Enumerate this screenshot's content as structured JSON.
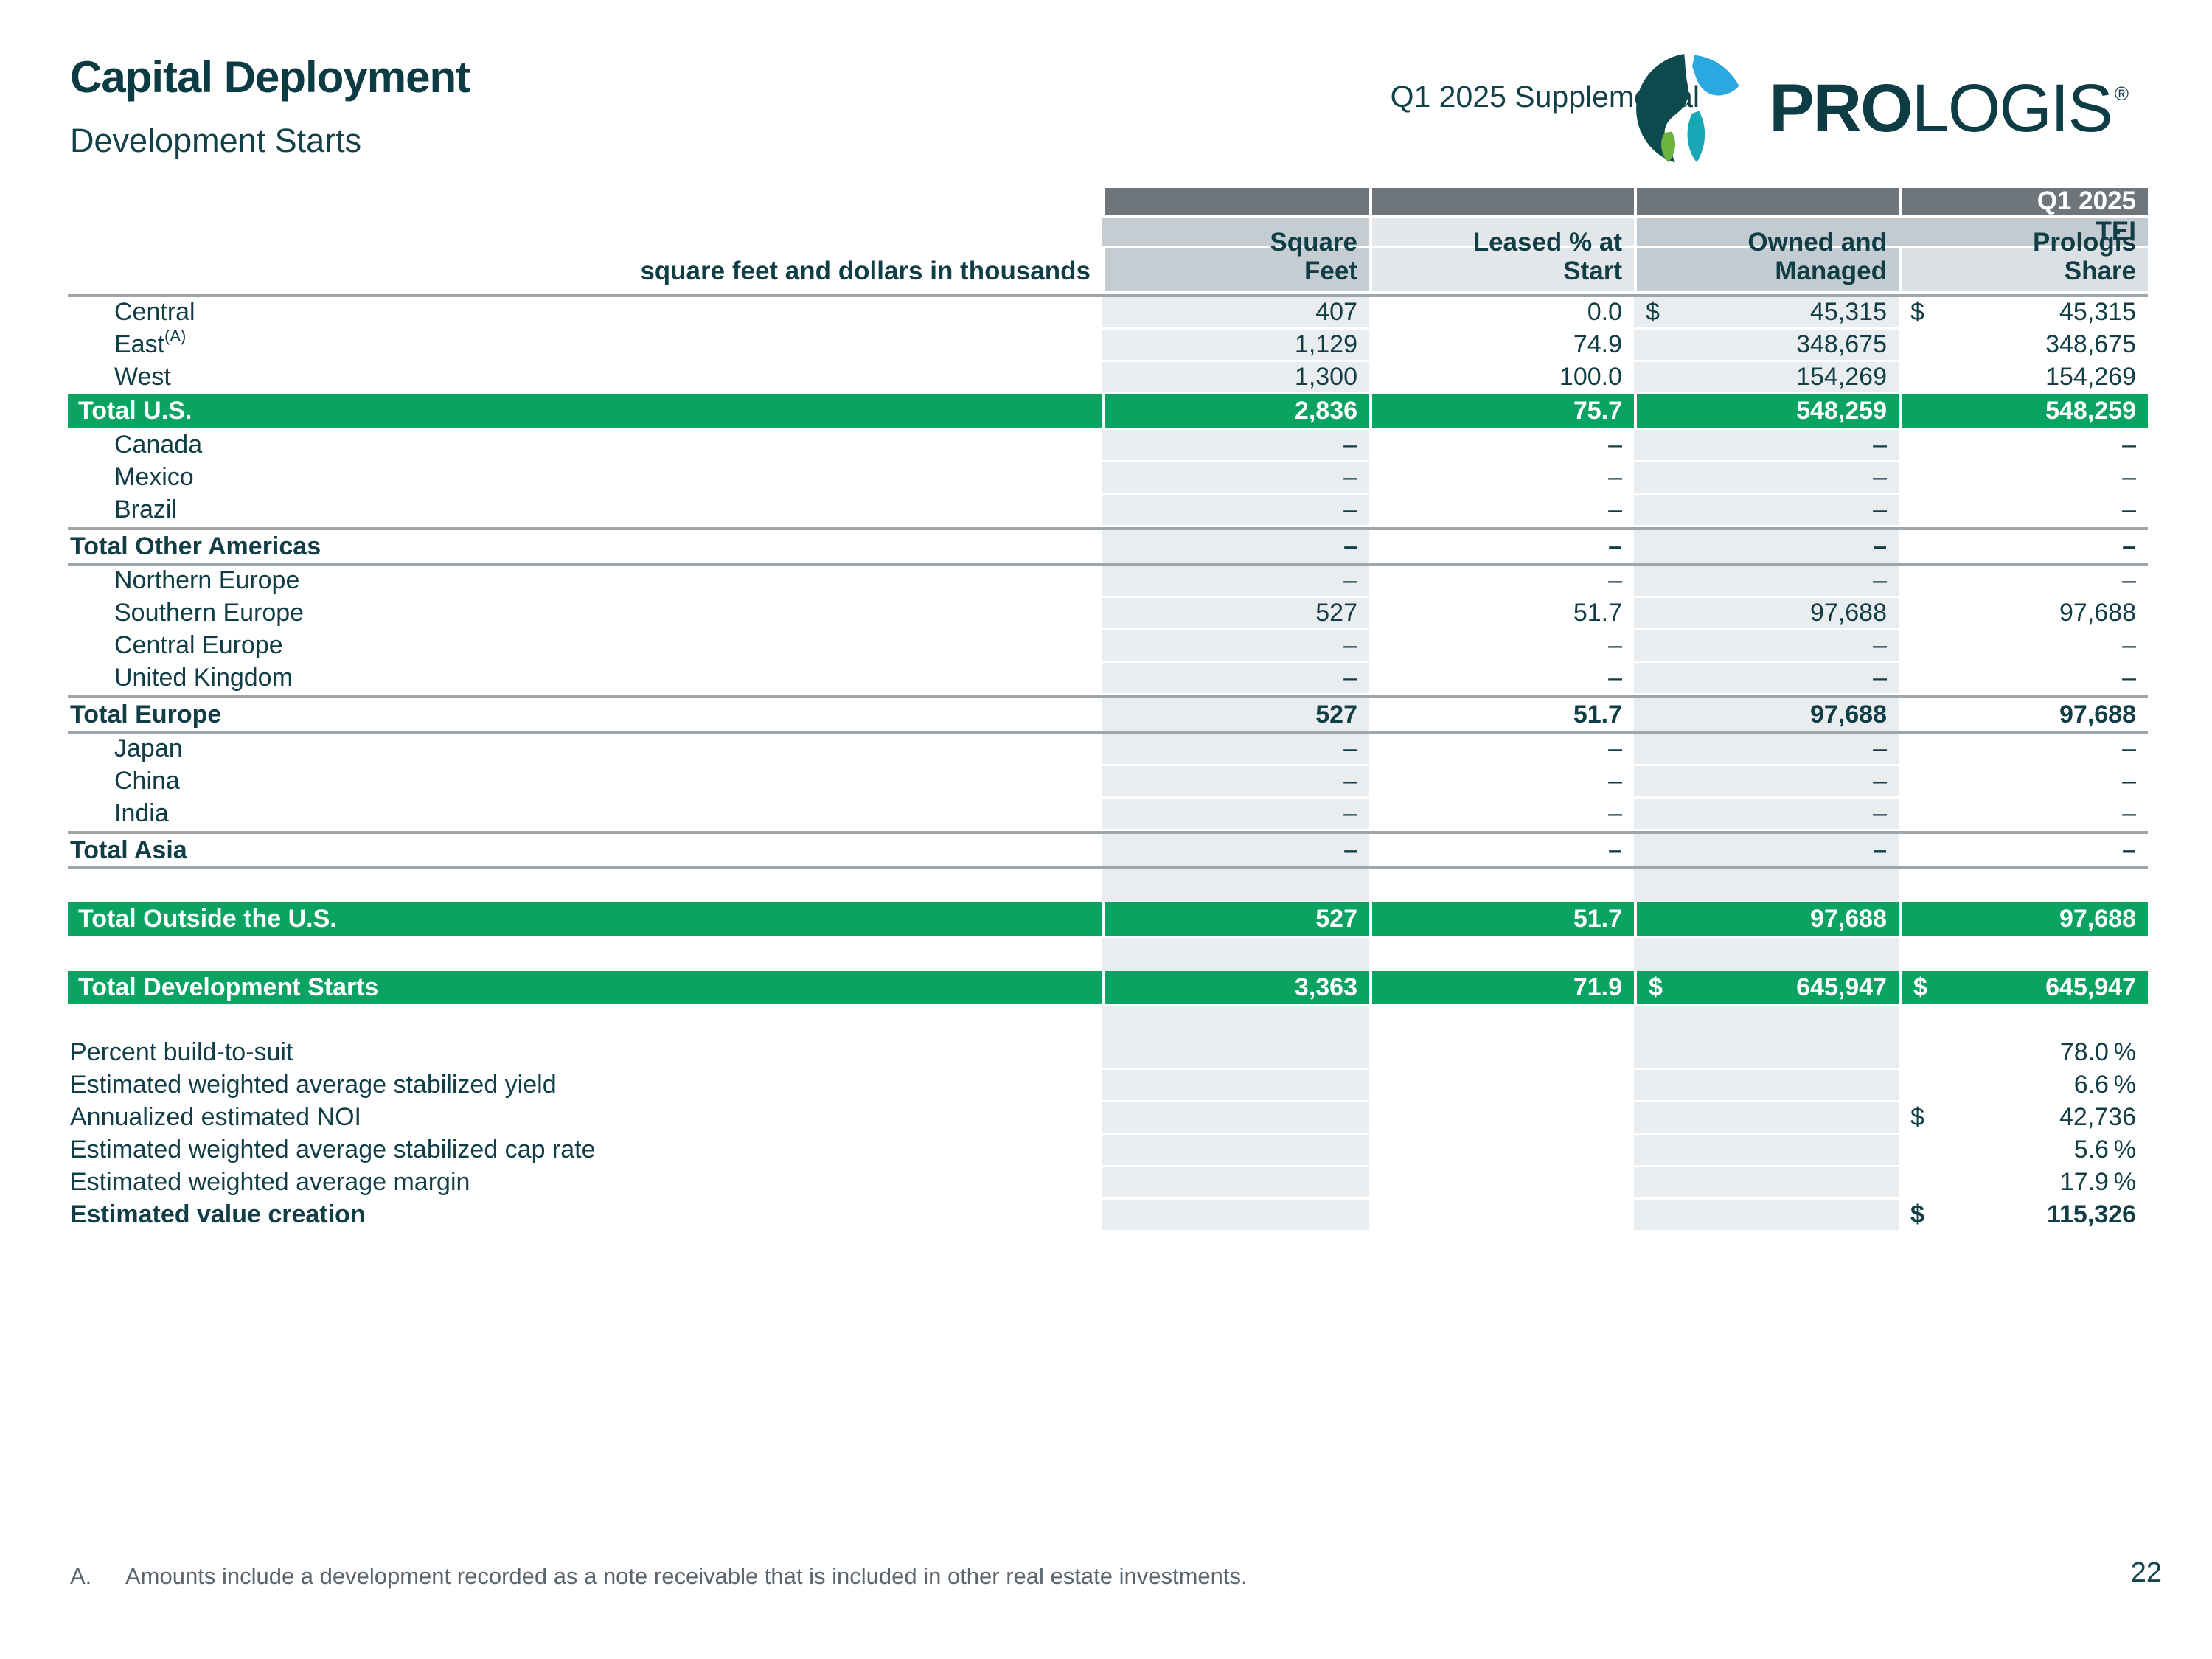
{
  "header": {
    "title": "Capital Deployment",
    "subtitle": "Development Starts",
    "supplemental": "Q1 2025 Supplemental",
    "logo": {
      "bold_part": "PRO",
      "regular_part": "LOGIS",
      "registered_mark": "®"
    }
  },
  "table": {
    "period_label": "Q1 2025",
    "tei_label": "TEI",
    "units_note": "square feet and dollars in thousands",
    "columns": [
      "Square\nFeet",
      "Leased % at\nStart",
      "Owned and\nManaged",
      "Prologis\nShare"
    ],
    "rows": [
      {
        "type": "region",
        "label": "Central",
        "cells": [
          {
            "val": "407"
          },
          {
            "val": "0.0"
          },
          {
            "cur": "$",
            "val": "45,315"
          },
          {
            "cur": "$",
            "val": "45,315"
          }
        ]
      },
      {
        "type": "region",
        "label": "East",
        "sup": "(A)",
        "cells": [
          {
            "val": "1,129"
          },
          {
            "val": "74.9"
          },
          {
            "val": "348,675"
          },
          {
            "val": "348,675"
          }
        ]
      },
      {
        "type": "region",
        "label": "West",
        "cells": [
          {
            "val": "1,300"
          },
          {
            "val": "100.0"
          },
          {
            "val": "154,269"
          },
          {
            "val": "154,269"
          }
        ]
      },
      {
        "type": "green",
        "label": "Total U.S.",
        "cells": [
          {
            "val": "2,836"
          },
          {
            "val": "75.7"
          },
          {
            "val": "548,259"
          },
          {
            "val": "548,259"
          }
        ]
      },
      {
        "type": "region",
        "label": "Canada",
        "cells": [
          {
            "val": "–"
          },
          {
            "val": "–"
          },
          {
            "val": "–"
          },
          {
            "val": "–"
          }
        ]
      },
      {
        "type": "region",
        "label": "Mexico",
        "cells": [
          {
            "val": "–"
          },
          {
            "val": "–"
          },
          {
            "val": "–"
          },
          {
            "val": "–"
          }
        ]
      },
      {
        "type": "region",
        "label": "Brazil",
        "cells": [
          {
            "val": "–"
          },
          {
            "val": "–"
          },
          {
            "val": "–"
          },
          {
            "val": "–"
          }
        ]
      },
      {
        "type": "subtotal",
        "label": "Total Other Americas",
        "cells": [
          {
            "val": "–"
          },
          {
            "val": "–"
          },
          {
            "val": "–"
          },
          {
            "val": "–"
          }
        ]
      },
      {
        "type": "region",
        "label": "Northern Europe",
        "cells": [
          {
            "val": "–"
          },
          {
            "val": "–"
          },
          {
            "val": "–"
          },
          {
            "val": "–"
          }
        ]
      },
      {
        "type": "region",
        "label": "Southern Europe",
        "cells": [
          {
            "val": "527"
          },
          {
            "val": "51.7"
          },
          {
            "val": "97,688"
          },
          {
            "val": "97,688"
          }
        ]
      },
      {
        "type": "region",
        "label": "Central Europe",
        "cells": [
          {
            "val": "–"
          },
          {
            "val": "–"
          },
          {
            "val": "–"
          },
          {
            "val": "–"
          }
        ]
      },
      {
        "type": "region",
        "label": "United Kingdom",
        "cells": [
          {
            "val": "–"
          },
          {
            "val": "–"
          },
          {
            "val": "–"
          },
          {
            "val": "–"
          }
        ]
      },
      {
        "type": "subtotal",
        "label": "Total Europe",
        "cells": [
          {
            "val": "527"
          },
          {
            "val": "51.7"
          },
          {
            "val": "97,688"
          },
          {
            "val": "97,688"
          }
        ]
      },
      {
        "type": "region",
        "label": "Japan",
        "cells": [
          {
            "val": "–"
          },
          {
            "val": "–"
          },
          {
            "val": "–"
          },
          {
            "val": "–"
          }
        ]
      },
      {
        "type": "region",
        "label": "China",
        "cells": [
          {
            "val": "–"
          },
          {
            "val": "–"
          },
          {
            "val": "–"
          },
          {
            "val": "–"
          }
        ]
      },
      {
        "type": "region",
        "label": "India",
        "cells": [
          {
            "val": "–"
          },
          {
            "val": "–"
          },
          {
            "val": "–"
          },
          {
            "val": "–"
          }
        ]
      },
      {
        "type": "subtotal",
        "label": "Total Asia",
        "cells": [
          {
            "val": "–"
          },
          {
            "val": "–"
          },
          {
            "val": "–"
          },
          {
            "val": "–"
          }
        ]
      },
      {
        "type": "spacer",
        "h": 45
      },
      {
        "type": "green",
        "label": "Total Outside the U.S.",
        "cells": [
          {
            "val": "527"
          },
          {
            "val": "51.7"
          },
          {
            "val": "97,688"
          },
          {
            "val": "97,688"
          }
        ]
      },
      {
        "type": "spacer",
        "h": 45
      },
      {
        "type": "green",
        "label": "Total Development Starts",
        "cells": [
          {
            "val": "3,363"
          },
          {
            "val": "71.9"
          },
          {
            "cur": "$",
            "val": "645,947"
          },
          {
            "cur": "$",
            "val": "645,947"
          }
        ]
      },
      {
        "type": "spacer",
        "h": 42
      },
      {
        "type": "metric",
        "label": "Percent build-to-suit",
        "cells": [
          null,
          null,
          null,
          {
            "val": "78.0",
            "suffix": "%"
          }
        ]
      },
      {
        "type": "metric",
        "label": "Estimated weighted average stabilized yield",
        "cells": [
          null,
          null,
          null,
          {
            "val": "6.6",
            "suffix": "%"
          }
        ]
      },
      {
        "type": "metric",
        "label": "Annualized estimated NOI",
        "cells": [
          null,
          null,
          null,
          {
            "cur": "$",
            "val": "42,736"
          }
        ]
      },
      {
        "type": "metric",
        "label": "Estimated weighted average stabilized cap rate",
        "cells": [
          null,
          null,
          null,
          {
            "val": "5.6",
            "suffix": "%"
          }
        ]
      },
      {
        "type": "metric",
        "label": "Estimated weighted average margin",
        "cells": [
          null,
          null,
          null,
          {
            "val": "17.9",
            "suffix": "%"
          }
        ]
      },
      {
        "type": "metric-bold",
        "label": "Estimated value creation",
        "cells": [
          null,
          null,
          null,
          {
            "cur": "$",
            "val": "115,326"
          }
        ]
      }
    ]
  },
  "footnote": {
    "marker": "A.",
    "text": "Amounts include a development recorded as a note receivable that is included in other real estate investments."
  },
  "page_number": "22",
  "colors": {
    "accent_green": "#0aa361",
    "teal_text": "#113e46",
    "dark_band": "#6e757b",
    "stripe": "#e9edf0",
    "rule_gray": "#9ea5ab"
  }
}
